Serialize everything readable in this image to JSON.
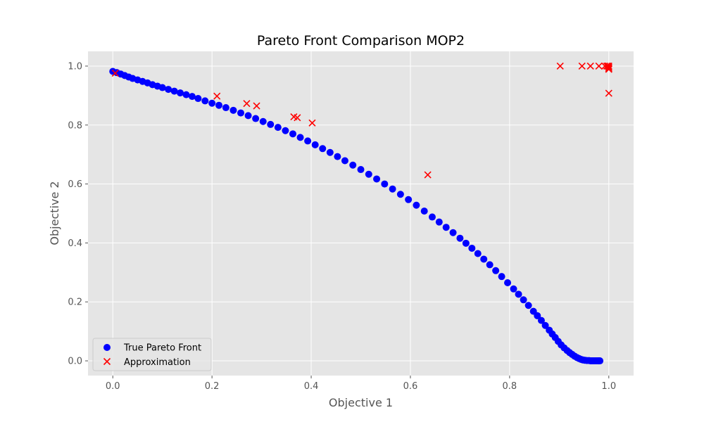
{
  "chart_data": {
    "type": "scatter",
    "title": "Pareto Front Comparison MOP2",
    "xlabel": "Objective 1",
    "ylabel": "Objective 2",
    "xlim": [
      -0.05,
      1.05
    ],
    "ylim": [
      -0.05,
      1.05
    ],
    "xticks": [
      "0.0",
      "0.2",
      "0.4",
      "0.6",
      "0.8",
      "1.0"
    ],
    "yticks": [
      "0.0",
      "0.2",
      "0.4",
      "0.6",
      "0.8",
      "1.0"
    ],
    "grid": true,
    "legend_position": "bottom-left",
    "colors": {
      "panel": "#e5e5e5",
      "grid": "#ffffff",
      "true_front": "#0000ff",
      "approximation": "#ff0000"
    },
    "series": [
      {
        "name": "True Pareto Front",
        "marker": "circle",
        "x": [
          0.0,
          0.008,
          0.016,
          0.024,
          0.032,
          0.04,
          0.05,
          0.06,
          0.07,
          0.08,
          0.09,
          0.1,
          0.112,
          0.124,
          0.136,
          0.148,
          0.16,
          0.172,
          0.186,
          0.2,
          0.214,
          0.228,
          0.243,
          0.258,
          0.273,
          0.288,
          0.303,
          0.318,
          0.333,
          0.348,
          0.363,
          0.378,
          0.393,
          0.408,
          0.423,
          0.438,
          0.453,
          0.468,
          0.484,
          0.5,
          0.516,
          0.532,
          0.548,
          0.564,
          0.58,
          0.596,
          0.612,
          0.628,
          0.644,
          0.658,
          0.672,
          0.686,
          0.7,
          0.712,
          0.724,
          0.736,
          0.748,
          0.76,
          0.772,
          0.784,
          0.796,
          0.808,
          0.818,
          0.828,
          0.838,
          0.848,
          0.856,
          0.864,
          0.872,
          0.88,
          0.886,
          0.892,
          0.898,
          0.904,
          0.91,
          0.916,
          0.921,
          0.926,
          0.931,
          0.936,
          0.94,
          0.944,
          0.948,
          0.952,
          0.956,
          0.96,
          0.963,
          0.966,
          0.969,
          0.972,
          0.975,
          0.978,
          0.98,
          0.982
        ],
        "y": [
          0.982,
          0.978,
          0.973,
          0.968,
          0.963,
          0.958,
          0.953,
          0.948,
          0.943,
          0.937,
          0.932,
          0.927,
          0.921,
          0.915,
          0.909,
          0.903,
          0.897,
          0.89,
          0.882,
          0.874,
          0.867,
          0.859,
          0.85,
          0.841,
          0.832,
          0.822,
          0.812,
          0.802,
          0.792,
          0.781,
          0.77,
          0.758,
          0.746,
          0.733,
          0.72,
          0.707,
          0.693,
          0.679,
          0.664,
          0.649,
          0.633,
          0.617,
          0.6,
          0.583,
          0.565,
          0.547,
          0.528,
          0.508,
          0.488,
          0.471,
          0.453,
          0.435,
          0.416,
          0.399,
          0.382,
          0.364,
          0.345,
          0.326,
          0.306,
          0.286,
          0.265,
          0.244,
          0.226,
          0.207,
          0.188,
          0.168,
          0.153,
          0.137,
          0.12,
          0.104,
          0.091,
          0.079,
          0.066,
          0.054,
          0.044,
          0.035,
          0.028,
          0.022,
          0.016,
          0.011,
          0.008,
          0.005,
          0.003,
          0.002,
          0.001,
          0.001,
          0.0,
          0.0,
          0.0,
          0.0,
          0.0,
          0.0,
          0.0,
          0.0
        ]
      },
      {
        "name": "Approximation",
        "marker": "x",
        "x": [
          0.005,
          0.21,
          0.27,
          0.29,
          0.365,
          0.372,
          0.402,
          0.635,
          0.902,
          0.946,
          0.963,
          0.98,
          0.992,
          0.996,
          0.998,
          1.0,
          1.0,
          1.0,
          1.0,
          1.0
        ],
        "y": [
          0.976,
          0.898,
          0.873,
          0.865,
          0.828,
          0.825,
          0.807,
          0.631,
          1.0,
          1.0,
          1.0,
          1.0,
          1.0,
          1.0,
          1.0,
          1.0,
          0.996,
          0.992,
          0.989,
          0.908
        ]
      }
    ]
  }
}
